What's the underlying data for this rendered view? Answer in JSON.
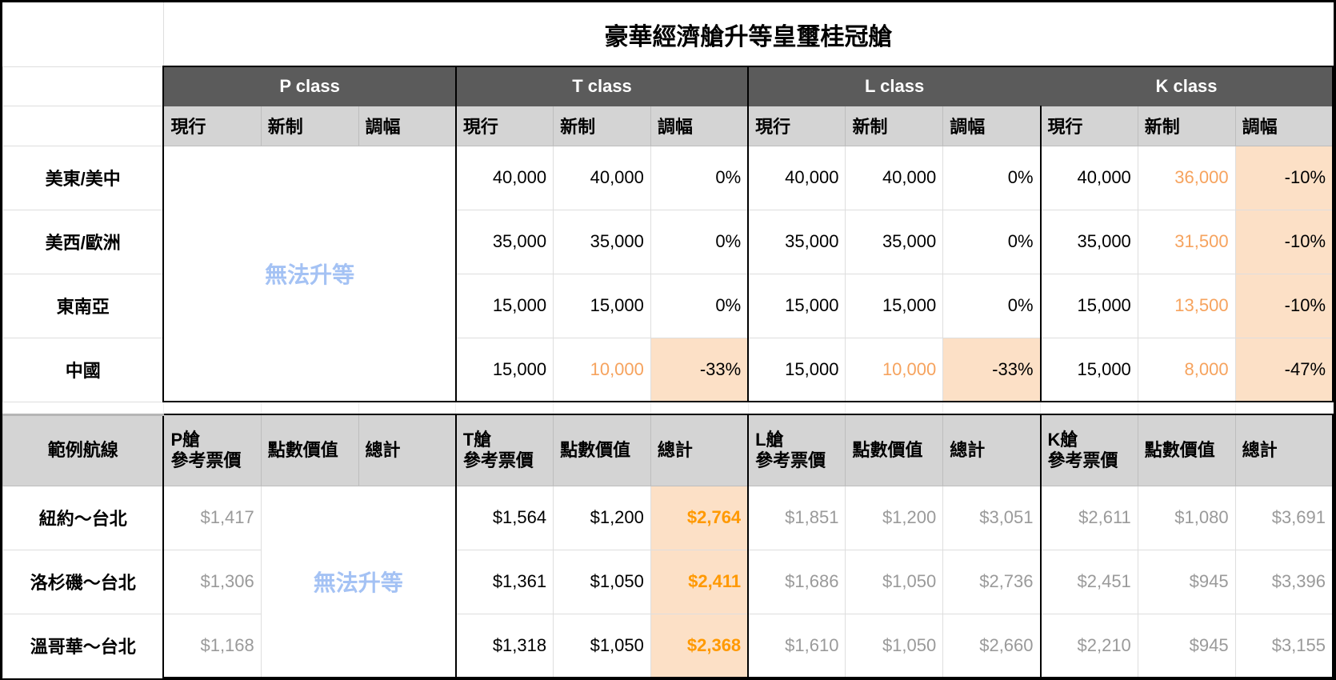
{
  "title": "豪華經濟艙升等皇璽桂冠艙",
  "classes": [
    "P class",
    "T class",
    "L class",
    "K class"
  ],
  "subheaders": [
    "現行",
    "新制",
    "調幅"
  ],
  "no_upgrade": "無法升等",
  "regions": [
    {
      "name": "美東/美中",
      "groups": [
        [
          {
            "v": "40,000"
          },
          {
            "v": "40,000"
          },
          {
            "v": "0%"
          }
        ],
        [
          {
            "v": "40,000"
          },
          {
            "v": "40,000"
          },
          {
            "v": "0%"
          }
        ],
        [
          {
            "v": "40,000"
          },
          {
            "v": "36,000",
            "s": "changed"
          },
          {
            "v": "-10%",
            "s": "highlight"
          }
        ]
      ]
    },
    {
      "name": "美西/歐洲",
      "groups": [
        [
          {
            "v": "35,000"
          },
          {
            "v": "35,000"
          },
          {
            "v": "0%"
          }
        ],
        [
          {
            "v": "35,000"
          },
          {
            "v": "35,000"
          },
          {
            "v": "0%"
          }
        ],
        [
          {
            "v": "35,000"
          },
          {
            "v": "31,500",
            "s": "changed"
          },
          {
            "v": "-10%",
            "s": "highlight"
          }
        ]
      ]
    },
    {
      "name": "東南亞",
      "groups": [
        [
          {
            "v": "15,000"
          },
          {
            "v": "15,000"
          },
          {
            "v": "0%"
          }
        ],
        [
          {
            "v": "15,000"
          },
          {
            "v": "15,000"
          },
          {
            "v": "0%"
          }
        ],
        [
          {
            "v": "15,000"
          },
          {
            "v": "13,500",
            "s": "changed"
          },
          {
            "v": "-10%",
            "s": "highlight"
          }
        ]
      ]
    },
    {
      "name": "中國",
      "groups": [
        [
          {
            "v": "15,000"
          },
          {
            "v": "10,000",
            "s": "changed"
          },
          {
            "v": "-33%",
            "s": "highlight"
          }
        ],
        [
          {
            "v": "15,000"
          },
          {
            "v": "10,000",
            "s": "changed"
          },
          {
            "v": "-33%",
            "s": "highlight"
          }
        ],
        [
          {
            "v": "15,000"
          },
          {
            "v": "8,000",
            "s": "changed"
          },
          {
            "v": "-47%",
            "s": "highlight"
          }
        ]
      ]
    }
  ],
  "example": {
    "route_header": "範例航線",
    "group_headers": [
      [
        "P艙\n參考票價",
        "點數價值",
        "總計"
      ],
      [
        "T艙\n參考票價",
        "點數價值",
        "總計"
      ],
      [
        "L艙\n參考票價",
        "點數價值",
        "總計"
      ],
      [
        "K艙\n參考票價",
        "點數價值",
        "總計"
      ]
    ],
    "rows": [
      {
        "route": "紐約～台北",
        "p_fare": "$1,417",
        "groups": [
          [
            {
              "v": "$1,564"
            },
            {
              "v": "$1,200"
            },
            {
              "v": "$2,764",
              "s": "total-hl"
            }
          ],
          [
            {
              "v": "$1,851",
              "s": "muted"
            },
            {
              "v": "$1,200",
              "s": "muted"
            },
            {
              "v": "$3,051",
              "s": "muted"
            }
          ],
          [
            {
              "v": "$2,611",
              "s": "muted"
            },
            {
              "v": "$1,080",
              "s": "muted"
            },
            {
              "v": "$3,691",
              "s": "muted"
            }
          ]
        ]
      },
      {
        "route": "洛杉磯～台北",
        "p_fare": "$1,306",
        "groups": [
          [
            {
              "v": "$1,361"
            },
            {
              "v": "$1,050"
            },
            {
              "v": "$2,411",
              "s": "total-hl"
            }
          ],
          [
            {
              "v": "$1,686",
              "s": "muted"
            },
            {
              "v": "$1,050",
              "s": "muted"
            },
            {
              "v": "$2,736",
              "s": "muted"
            }
          ],
          [
            {
              "v": "$2,451",
              "s": "muted"
            },
            {
              "v": "$945",
              "s": "muted"
            },
            {
              "v": "$3,396",
              "s": "muted"
            }
          ]
        ]
      },
      {
        "route": "溫哥華～台北",
        "p_fare": "$1,168",
        "groups": [
          [
            {
              "v": "$1,318"
            },
            {
              "v": "$1,050"
            },
            {
              "v": "$2,368",
              "s": "total-hl"
            }
          ],
          [
            {
              "v": "$1,610",
              "s": "muted"
            },
            {
              "v": "$1,050",
              "s": "muted"
            },
            {
              "v": "$2,660",
              "s": "muted"
            }
          ],
          [
            {
              "v": "$2,210",
              "s": "muted"
            },
            {
              "v": "$945",
              "s": "muted"
            },
            {
              "v": "$3,155",
              "s": "muted"
            }
          ]
        ]
      }
    ]
  },
  "colors": {
    "class_header_bg": "#5b5b5b",
    "subheader_bg": "#d4d4d4",
    "changed_text": "#f6a35e",
    "highlight_bg": "#fce0c6",
    "total_highlight_text": "#ff9900",
    "no_upgrade_text": "#a4c2f4",
    "muted_text": "#9a9a9a"
  }
}
